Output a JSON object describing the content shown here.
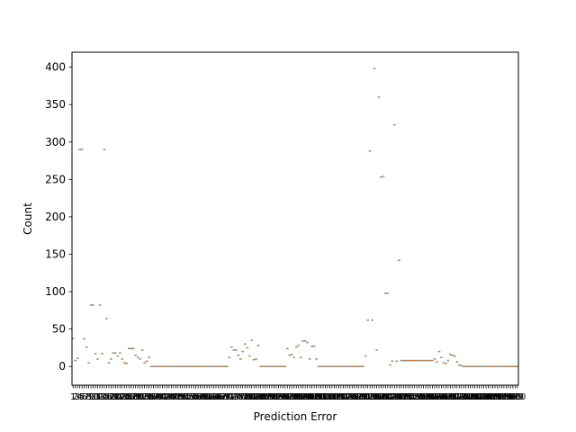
{
  "chart_data": {
    "type": "box",
    "xlabel": "Prediction Error",
    "ylabel": "Count",
    "ylim": [
      -25,
      420
    ],
    "yticks": [
      0,
      50,
      100,
      150,
      200,
      250,
      300,
      350,
      400
    ],
    "n_categories": 200,
    "x_tick_labels_overlap": true,
    "grid": false,
    "colors": {
      "box": "#1f77b4",
      "median": "#ff7f0e",
      "outlier": "#000000"
    },
    "values": [
      37,
      8,
      11,
      290,
      290,
      37,
      26,
      5,
      82,
      82,
      17,
      10,
      82,
      17,
      290,
      64,
      5,
      10,
      18,
      18,
      14,
      18,
      10,
      5,
      4,
      24,
      24,
      24,
      15,
      12,
      10,
      22,
      5,
      7,
      12,
      0,
      0,
      0,
      0,
      0,
      0,
      0,
      0,
      0,
      0,
      0,
      0,
      0,
      0,
      0,
      0,
      0,
      0,
      0,
      0,
      0,
      0,
      0,
      0,
      0,
      0,
      0,
      0,
      0,
      0,
      0,
      0,
      0,
      0,
      0,
      12,
      26,
      22,
      22,
      15,
      10,
      20,
      30,
      25,
      14,
      35,
      9,
      10,
      28,
      0,
      0,
      0,
      0,
      0,
      0,
      0,
      0,
      0,
      0,
      0,
      0,
      24,
      15,
      16,
      12,
      26,
      28,
      12,
      34,
      34,
      32,
      10,
      27,
      27,
      10,
      0,
      0,
      0,
      0,
      0,
      0,
      0,
      0,
      0,
      0,
      0,
      0,
      0,
      0,
      0,
      0,
      0,
      0,
      0,
      0,
      0,
      14,
      62,
      288,
      62,
      398,
      22,
      360,
      253,
      254,
      98,
      98,
      2,
      7,
      323,
      7,
      142,
      8,
      8,
      8,
      8,
      8,
      8,
      8,
      8,
      8,
      8,
      8,
      8,
      8,
      8,
      8,
      10,
      6,
      20,
      12,
      5,
      4,
      8,
      16,
      15,
      14,
      6,
      2,
      1,
      0,
      0,
      0,
      0,
      0,
      0,
      0,
      0,
      0,
      0,
      0,
      0,
      0,
      0,
      0,
      0,
      0,
      0,
      0,
      0,
      0,
      0,
      0,
      0,
      0
    ]
  }
}
